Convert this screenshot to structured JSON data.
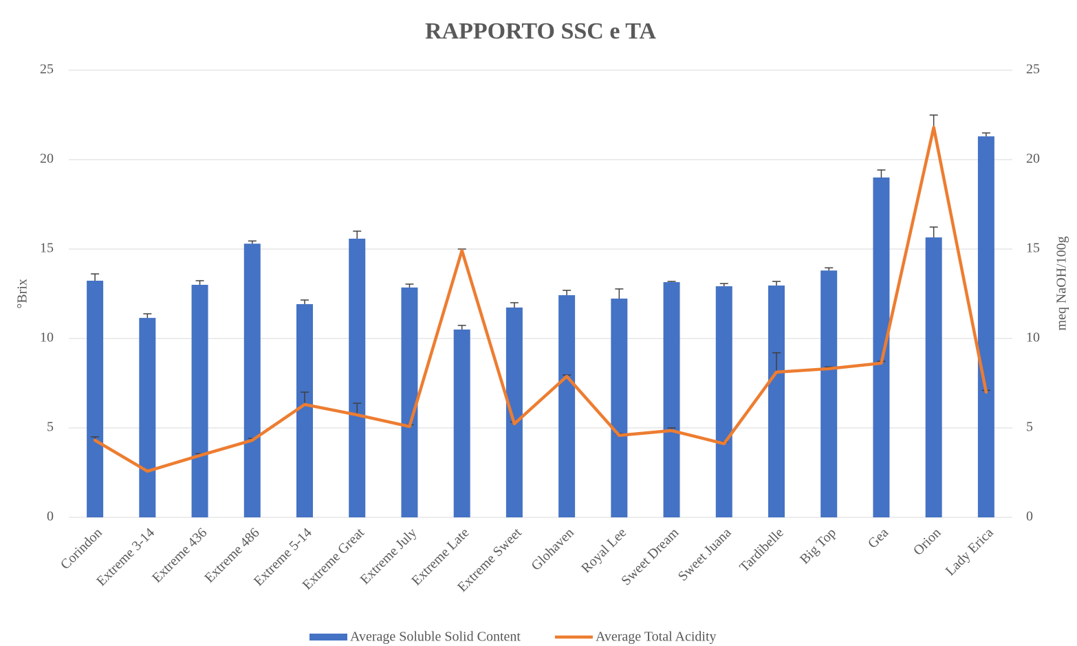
{
  "chart_data": {
    "type": "bar_line",
    "title": "RAPPORTO SSC e TA",
    "ylabel": "°Brix",
    "y2label": "meq NaOH/100g",
    "categories": [
      "Corindon",
      "Extreme 3-14",
      "Extreme 436",
      "Extreme 486",
      "Extreme 5-14",
      "Extreme Great",
      "Extreme July",
      "Extreme Late",
      "Extreme Sweet",
      "Glohaven",
      "Royal Lee",
      "Sweet Dream",
      "Sweet Juana",
      "Tardibelle",
      "Big Top",
      "Gea",
      "Orion",
      "Lady Erica"
    ],
    "series": [
      {
        "name": "Average Soluble Solid Content",
        "type": "bar",
        "color": "#4472c4",
        "axis": "y",
        "values": [
          13.23,
          11.15,
          13.0,
          15.3,
          11.92,
          15.58,
          12.85,
          10.5,
          11.73,
          12.42,
          12.23,
          13.15,
          12.92,
          12.96,
          13.8,
          19.0,
          15.65,
          21.3
        ],
        "errors": [
          0.38,
          0.23,
          0.23,
          0.15,
          0.23,
          0.42,
          0.19,
          0.23,
          0.27,
          0.27,
          0.54,
          0.04,
          0.15,
          0.23,
          0.15,
          0.42,
          0.58,
          0.19
        ]
      },
      {
        "name": "Average Total Acidity",
        "type": "line",
        "color": "#ed7d31",
        "axis": "y2",
        "values": [
          4.31,
          2.58,
          3.46,
          4.31,
          6.31,
          5.73,
          5.08,
          14.92,
          5.23,
          7.88,
          4.58,
          4.85,
          4.12,
          8.12,
          8.31,
          8.62,
          21.8,
          7.0
        ],
        "errors": [
          0.19,
          0.05,
          0.1,
          0.1,
          0.69,
          0.65,
          0.1,
          0.08,
          0.1,
          0.08,
          0.1,
          0.15,
          0.1,
          1.08,
          0.1,
          0.1,
          0.69,
          0.1
        ]
      }
    ],
    "ylim": [
      0,
      25
    ],
    "yticks": [
      0,
      5,
      10,
      15,
      20,
      25
    ],
    "y2lim": [
      0,
      25
    ],
    "y2ticks": [
      0,
      5,
      10,
      15,
      20,
      25
    ],
    "grid": true,
    "legend": "bottom"
  }
}
